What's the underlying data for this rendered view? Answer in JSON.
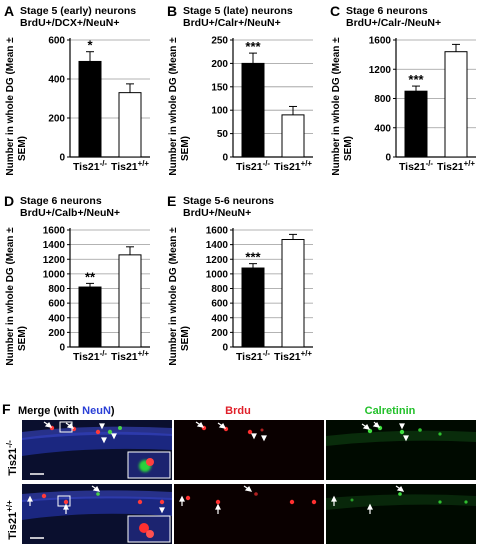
{
  "chart_data": [
    {
      "type": "bar",
      "panel_letter": "A",
      "title_line1": "Stage 5 (early) neurons",
      "title_line2": "BrdU+/DCX+/NeuN+",
      "ylabel_line1": "Number in whole DG (Mean ±",
      "ylabel_line2": "SEM)",
      "categories": [
        "Tis21-/-",
        "Tis21+/+"
      ],
      "values": [
        490,
        330
      ],
      "errors": [
        50,
        45
      ],
      "significance": "*",
      "ylim": [
        0,
        600
      ],
      "yticks": [
        0,
        200,
        400,
        600
      ],
      "colors": [
        "#000000",
        "#ffffff"
      ]
    },
    {
      "type": "bar",
      "panel_letter": "B",
      "title_line1": "Stage 5 (late) neurons",
      "title_line2": "BrdU+/Calr+/NeuN+",
      "ylabel_line1": "Number in whole DG (Mean ±",
      "ylabel_line2": "SEM)",
      "categories": [
        "Tis21-/-",
        "Tis21+/+"
      ],
      "values": [
        200,
        90
      ],
      "errors": [
        22,
        18
      ],
      "significance": "***",
      "ylim": [
        0,
        250
      ],
      "yticks": [
        0,
        50,
        100,
        150,
        200,
        250
      ],
      "colors": [
        "#000000",
        "#ffffff"
      ]
    },
    {
      "type": "bar",
      "panel_letter": "C",
      "title_line1": "Stage 6  neurons",
      "title_line2": "BrdU+/Calr-/NeuN+",
      "ylabel_line1": "Number in whole DG (Mean ±",
      "ylabel_line2": "SEM)",
      "categories": [
        "Tis21-/-",
        "Tis21+/+"
      ],
      "values": [
        900,
        1440
      ],
      "errors": [
        70,
        100
      ],
      "significance": "***",
      "ylim": [
        0,
        1600
      ],
      "yticks": [
        0,
        400,
        800,
        1200,
        1600
      ],
      "colors": [
        "#000000",
        "#ffffff"
      ]
    },
    {
      "type": "bar",
      "panel_letter": "D",
      "title_line1": "Stage 6  neurons",
      "title_line2": "BrdU+/Calb+/NeuN+",
      "ylabel_line1": "Number in whole DG (Mean ±",
      "ylabel_line2": "SEM)",
      "categories": [
        "Tis21-/-",
        "Tis21+/+"
      ],
      "values": [
        820,
        1260
      ],
      "errors": [
        50,
        110
      ],
      "significance": "**",
      "ylim": [
        0,
        1600
      ],
      "yticks": [
        0,
        200,
        400,
        600,
        800,
        1000,
        1200,
        1400,
        1600
      ],
      "colors": [
        "#000000",
        "#ffffff"
      ]
    },
    {
      "type": "bar",
      "panel_letter": "E",
      "title_line1": "Stage 5-6  neurons",
      "title_line2": "BrdU+/NeuN+",
      "ylabel_line1": "Number in whole DG (Mean ±",
      "ylabel_line2": "SEM)",
      "categories": [
        "Tis21-/-",
        "Tis21+/+"
      ],
      "values": [
        1080,
        1470
      ],
      "errors": [
        60,
        70
      ],
      "significance": "***",
      "ylim": [
        0,
        1600
      ],
      "yticks": [
        0,
        200,
        400,
        600,
        800,
        1000,
        1200,
        1400,
        1600
      ],
      "colors": [
        "#000000",
        "#ffffff"
      ]
    }
  ],
  "micrographs": {
    "panel_letter": "F",
    "col_merge_prefix": "Merge (with ",
    "col_merge_neun": "NeuN",
    "col_merge_suffix": ")",
    "col_brdu": "Brdu",
    "col_calretinin": "Calretinin",
    "row_ko": "Tis21-/-",
    "row_wt": "Tis21+/+",
    "colors": {
      "neun": "#2a3fd6",
      "brdu": "#e0202a",
      "calretinin": "#22c02a"
    }
  }
}
